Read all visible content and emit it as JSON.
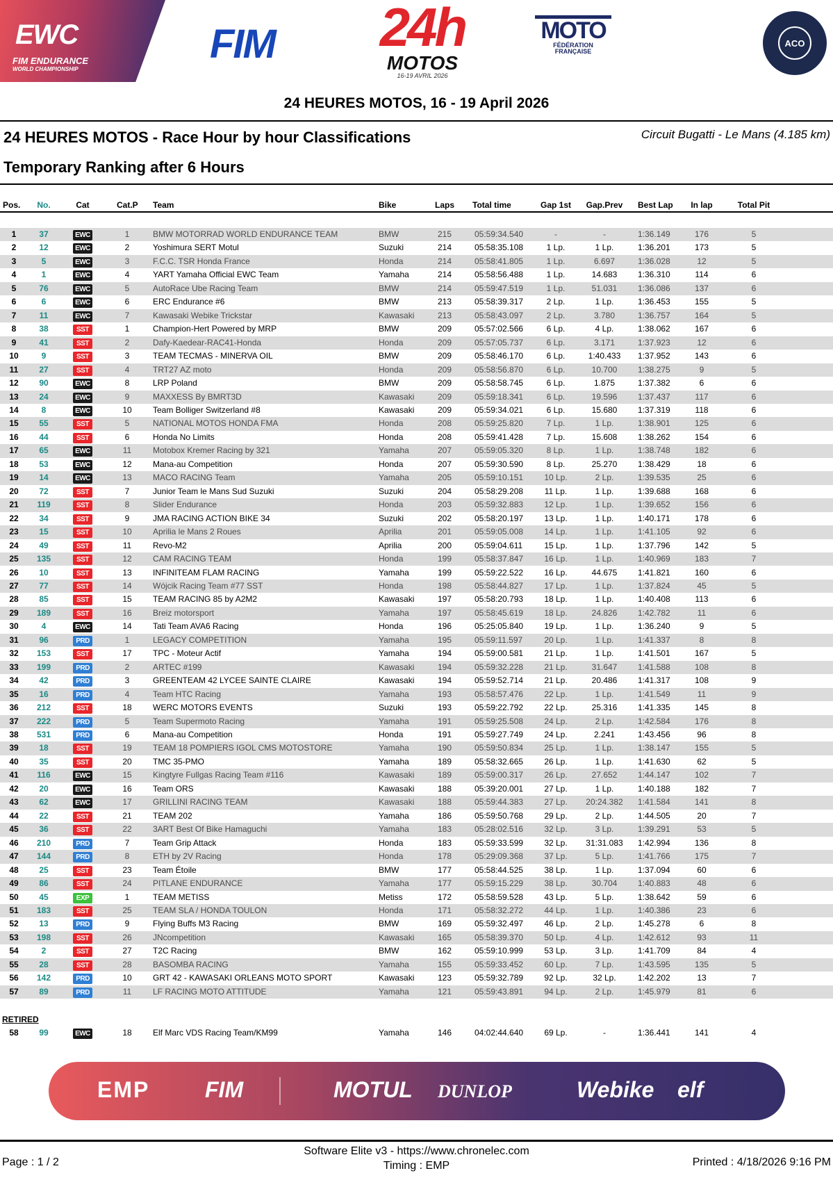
{
  "logos": {
    "ewc": "EWC",
    "ewc_sub1": "FIM ENDURANCE",
    "ewc_sub2": "WORLD CHAMPIONSHIP",
    "fim": "FIM",
    "h24": "24h",
    "h24_motos": "MOTOS",
    "h24_date": "16-19 AVRIL 2026",
    "moto": "MOTO",
    "moto_sub": "FÉDÉRATION FRANÇAISE",
    "aco": "ACO"
  },
  "header": {
    "event": "24 HEURES MOTOS, 16 - 19 April 2026",
    "title": "24 HEURES MOTOS - Race Hour by hour Classifications",
    "circuit": "Circuit Bugatti - Le Mans (4.185 km)",
    "subtitle": "Temporary Ranking after 6 Hours"
  },
  "columns": [
    "Pos.",
    "No.",
    "Cat",
    "Cat.P",
    "Team",
    "Bike",
    "Laps",
    "Total time",
    "Gap 1st",
    "Gap.Prev",
    "Best Lap",
    "In lap",
    "Total Pit"
  ],
  "category_colors": {
    "EWC": "#1a1a1a",
    "SST": "#e8262b",
    "PRD": "#2f7fd4",
    "EXP": "#3cc13c"
  },
  "rows": [
    [
      "1",
      "37",
      "EWC",
      "1",
      "BMW MOTORRAD WORLD ENDURANCE TEAM",
      "BMW",
      "215",
      "05:59:34.540",
      "-",
      "-",
      "1:36.149",
      "176",
      "5"
    ],
    [
      "2",
      "12",
      "EWC",
      "2",
      "Yoshimura SERT Motul",
      "Suzuki",
      "214",
      "05:58:35.108",
      "1 Lp.",
      "1 Lp.",
      "1:36.201",
      "173",
      "5"
    ],
    [
      "3",
      "5",
      "EWC",
      "3",
      "F.C.C. TSR Honda France",
      "Honda",
      "214",
      "05:58:41.805",
      "1 Lp.",
      "6.697",
      "1:36.028",
      "12",
      "5"
    ],
    [
      "4",
      "1",
      "EWC",
      "4",
      "YART Yamaha Official EWC Team",
      "Yamaha",
      "214",
      "05:58:56.488",
      "1 Lp.",
      "14.683",
      "1:36.310",
      "114",
      "6"
    ],
    [
      "5",
      "76",
      "EWC",
      "5",
      "AutoRace Ube Racing Team",
      "BMW",
      "214",
      "05:59:47.519",
      "1 Lp.",
      "51.031",
      "1:36.086",
      "137",
      "6"
    ],
    [
      "6",
      "6",
      "EWC",
      "6",
      "ERC Endurance #6",
      "BMW",
      "213",
      "05:58:39.317",
      "2 Lp.",
      "1 Lp.",
      "1:36.453",
      "155",
      "5"
    ],
    [
      "7",
      "11",
      "EWC",
      "7",
      "Kawasaki Webike Trickstar",
      "Kawasaki",
      "213",
      "05:58:43.097",
      "2 Lp.",
      "3.780",
      "1:36.757",
      "164",
      "5"
    ],
    [
      "8",
      "38",
      "SST",
      "1",
      "Champion-Hert Powered by MRP",
      "BMW",
      "209",
      "05:57:02.566",
      "6 Lp.",
      "4 Lp.",
      "1:38.062",
      "167",
      "6"
    ],
    [
      "9",
      "41",
      "SST",
      "2",
      "Dafy-Kaedear-RAC41-Honda",
      "Honda",
      "209",
      "05:57:05.737",
      "6 Lp.",
      "3.171",
      "1:37.923",
      "12",
      "6"
    ],
    [
      "10",
      "9",
      "SST",
      "3",
      "TEAM TECMAS - MINERVA OIL",
      "BMW",
      "209",
      "05:58:46.170",
      "6 Lp.",
      "1:40.433",
      "1:37.952",
      "143",
      "6"
    ],
    [
      "11",
      "27",
      "SST",
      "4",
      "TRT27  AZ moto",
      "Honda",
      "209",
      "05:58:56.870",
      "6 Lp.",
      "10.700",
      "1:38.275",
      "9",
      "5"
    ],
    [
      "12",
      "90",
      "EWC",
      "8",
      "LRP Poland",
      "BMW",
      "209",
      "05:58:58.745",
      "6 Lp.",
      "1.875",
      "1:37.382",
      "6",
      "6"
    ],
    [
      "13",
      "24",
      "EWC",
      "9",
      "MAXXESS By BMRT3D",
      "Kawasaki",
      "209",
      "05:59:18.341",
      "6 Lp.",
      "19.596",
      "1:37.437",
      "117",
      "6"
    ],
    [
      "14",
      "8",
      "EWC",
      "10",
      "Team Bolliger Switzerland #8",
      "Kawasaki",
      "209",
      "05:59:34.021",
      "6 Lp.",
      "15.680",
      "1:37.319",
      "118",
      "6"
    ],
    [
      "15",
      "55",
      "SST",
      "5",
      "NATIONAL MOTOS HONDA FMA",
      "Honda",
      "208",
      "05:59:25.820",
      "7 Lp.",
      "1 Lp.",
      "1:38.901",
      "125",
      "6"
    ],
    [
      "16",
      "44",
      "SST",
      "6",
      "Honda No Limits",
      "Honda",
      "208",
      "05:59:41.428",
      "7 Lp.",
      "15.608",
      "1:38.262",
      "154",
      "6"
    ],
    [
      "17",
      "65",
      "EWC",
      "11",
      "Motobox Kremer Racing by 321",
      "Yamaha",
      "207",
      "05:59:05.320",
      "8 Lp.",
      "1 Lp.",
      "1:38.748",
      "182",
      "6"
    ],
    [
      "18",
      "53",
      "EWC",
      "12",
      "Mana-au Competition",
      "Honda",
      "207",
      "05:59:30.590",
      "8 Lp.",
      "25.270",
      "1:38.429",
      "18",
      "6"
    ],
    [
      "19",
      "14",
      "EWC",
      "13",
      "MACO RACING Team",
      "Yamaha",
      "205",
      "05:59:10.151",
      "10 Lp.",
      "2 Lp.",
      "1:39.535",
      "25",
      "6"
    ],
    [
      "20",
      "72",
      "SST",
      "7",
      "Junior Team le Mans Sud Suzuki",
      "Suzuki",
      "204",
      "05:58:29.208",
      "11 Lp.",
      "1 Lp.",
      "1:39.688",
      "168",
      "6"
    ],
    [
      "21",
      "119",
      "SST",
      "8",
      "Slider Endurance",
      "Honda",
      "203",
      "05:59:32.883",
      "12 Lp.",
      "1 Lp.",
      "1:39.652",
      "156",
      "6"
    ],
    [
      "22",
      "34",
      "SST",
      "9",
      "JMA RACING ACTION BIKE 34",
      "Suzuki",
      "202",
      "05:58:20.197",
      "13 Lp.",
      "1 Lp.",
      "1:40.171",
      "178",
      "6"
    ],
    [
      "23",
      "15",
      "SST",
      "10",
      "Aprilia le Mans 2 Roues",
      "Aprilia",
      "201",
      "05:59:05.008",
      "14 Lp.",
      "1 Lp.",
      "1:41.105",
      "92",
      "6"
    ],
    [
      "24",
      "49",
      "SST",
      "11",
      "Revo-M2",
      "Aprilia",
      "200",
      "05:59:04.611",
      "15 Lp.",
      "1 Lp.",
      "1:37.796",
      "142",
      "5"
    ],
    [
      "25",
      "135",
      "SST",
      "12",
      "CAM RACING TEAM",
      "Honda",
      "199",
      "05:58:37.847",
      "16 Lp.",
      "1 Lp.",
      "1:40.969",
      "183",
      "7"
    ],
    [
      "26",
      "10",
      "SST",
      "13",
      "INFINITEAM FLAM RACING",
      "Yamaha",
      "199",
      "05:59:22.522",
      "16 Lp.",
      "44.675",
      "1:41.821",
      "160",
      "6"
    ],
    [
      "27",
      "77",
      "SST",
      "14",
      "Wójcik Racing Team #77 SST",
      "Honda",
      "198",
      "05:58:44.827",
      "17 Lp.",
      "1 Lp.",
      "1:37.824",
      "45",
      "5"
    ],
    [
      "28",
      "85",
      "SST",
      "15",
      "TEAM RACING 85 by A2M2",
      "Kawasaki",
      "197",
      "05:58:20.793",
      "18 Lp.",
      "1 Lp.",
      "1:40.408",
      "113",
      "6"
    ],
    [
      "29",
      "189",
      "SST",
      "16",
      "Breiz motorsport",
      "Yamaha",
      "197",
      "05:58:45.619",
      "18 Lp.",
      "24.826",
      "1:42.782",
      "11",
      "6"
    ],
    [
      "30",
      "4",
      "EWC",
      "14",
      "Tati Team AVA6 Racing",
      "Honda",
      "196",
      "05:25:05.840",
      "19 Lp.",
      "1 Lp.",
      "1:36.240",
      "9",
      "5"
    ],
    [
      "31",
      "96",
      "PRD",
      "1",
      "LEGACY COMPETITION",
      "Yamaha",
      "195",
      "05:59:11.597",
      "20 Lp.",
      "1 Lp.",
      "1:41.337",
      "8",
      "8"
    ],
    [
      "32",
      "153",
      "SST",
      "17",
      "TPC - Moteur Actif",
      "Yamaha",
      "194",
      "05:59:00.581",
      "21 Lp.",
      "1 Lp.",
      "1:41.501",
      "167",
      "5"
    ],
    [
      "33",
      "199",
      "PRD",
      "2",
      "ARTEC #199",
      "Kawasaki",
      "194",
      "05:59:32.228",
      "21 Lp.",
      "31.647",
      "1:41.588",
      "108",
      "8"
    ],
    [
      "34",
      "42",
      "PRD",
      "3",
      "GREENTEAM 42 LYCEE SAINTE CLAIRE",
      "Kawasaki",
      "194",
      "05:59:52.714",
      "21 Lp.",
      "20.486",
      "1:41.317",
      "108",
      "9"
    ],
    [
      "35",
      "16",
      "PRD",
      "4",
      "Team HTC Racing",
      "Yamaha",
      "193",
      "05:58:57.476",
      "22 Lp.",
      "1 Lp.",
      "1:41.549",
      "11",
      "9"
    ],
    [
      "36",
      "212",
      "SST",
      "18",
      "WERC MOTORS EVENTS",
      "Suzuki",
      "193",
      "05:59:22.792",
      "22 Lp.",
      "25.316",
      "1:41.335",
      "145",
      "8"
    ],
    [
      "37",
      "222",
      "PRD",
      "5",
      "Team Supermoto Racing",
      "Yamaha",
      "191",
      "05:59:25.508",
      "24 Lp.",
      "2 Lp.",
      "1:42.584",
      "176",
      "8"
    ],
    [
      "38",
      "531",
      "PRD",
      "6",
      "Mana-au Competition",
      "Honda",
      "191",
      "05:59:27.749",
      "24 Lp.",
      "2.241",
      "1:43.456",
      "96",
      "8"
    ],
    [
      "39",
      "18",
      "SST",
      "19",
      "TEAM 18 POMPIERS IGOL CMS MOTOSTORE",
      "Yamaha",
      "190",
      "05:59:50.834",
      "25 Lp.",
      "1 Lp.",
      "1:38.147",
      "155",
      "5"
    ],
    [
      "40",
      "35",
      "SST",
      "20",
      "TMC 35-PMO",
      "Yamaha",
      "189",
      "05:58:32.665",
      "26 Lp.",
      "1 Lp.",
      "1:41.630",
      "62",
      "5"
    ],
    [
      "41",
      "116",
      "EWC",
      "15",
      "Kingtyre Fullgas Racing Team #116",
      "Kawasaki",
      "189",
      "05:59:00.317",
      "26 Lp.",
      "27.652",
      "1:44.147",
      "102",
      "7"
    ],
    [
      "42",
      "20",
      "EWC",
      "16",
      "Team ORS",
      "Kawasaki",
      "188",
      "05:39:20.001",
      "27 Lp.",
      "1 Lp.",
      "1:40.188",
      "182",
      "7"
    ],
    [
      "43",
      "62",
      "EWC",
      "17",
      "GRILLINI RACING TEAM",
      "Kawasaki",
      "188",
      "05:59:44.383",
      "27 Lp.",
      "20:24.382",
      "1:41.584",
      "141",
      "8"
    ],
    [
      "44",
      "22",
      "SST",
      "21",
      "TEAM 202",
      "Yamaha",
      "186",
      "05:59:50.768",
      "29 Lp.",
      "2 Lp.",
      "1:44.505",
      "20",
      "7"
    ],
    [
      "45",
      "36",
      "SST",
      "22",
      "3ART Best Of Bike Hamaguchi",
      "Yamaha",
      "183",
      "05:28:02.516",
      "32 Lp.",
      "3 Lp.",
      "1:39.291",
      "53",
      "5"
    ],
    [
      "46",
      "210",
      "PRD",
      "7",
      "Team Grip Attack",
      "Honda",
      "183",
      "05:59:33.599",
      "32 Lp.",
      "31:31.083",
      "1:42.994",
      "136",
      "8"
    ],
    [
      "47",
      "144",
      "PRD",
      "8",
      "ETH by 2V Racing",
      "Honda",
      "178",
      "05:29:09.368",
      "37 Lp.",
      "5 Lp.",
      "1:41.766",
      "175",
      "7"
    ],
    [
      "48",
      "25",
      "SST",
      "23",
      "Team Étoile",
      "BMW",
      "177",
      "05:58:44.525",
      "38 Lp.",
      "1 Lp.",
      "1:37.094",
      "60",
      "6"
    ],
    [
      "49",
      "86",
      "SST",
      "24",
      "PITLANE ENDURANCE",
      "Yamaha",
      "177",
      "05:59:15.229",
      "38 Lp.",
      "30.704",
      "1:40.883",
      "48",
      "6"
    ],
    [
      "50",
      "45",
      "EXP",
      "1",
      "TEAM METISS",
      "Metiss",
      "172",
      "05:58:59.528",
      "43 Lp.",
      "5 Lp.",
      "1:38.642",
      "59",
      "6"
    ],
    [
      "51",
      "183",
      "SST",
      "25",
      "TEAM SLA / HONDA TOULON",
      "Honda",
      "171",
      "05:58:32.272",
      "44 Lp.",
      "1 Lp.",
      "1:40.386",
      "23",
      "6"
    ],
    [
      "52",
      "13",
      "PRD",
      "9",
      "Flying Buffs M3 Racing",
      "BMW",
      "169",
      "05:59:32.497",
      "46 Lp.",
      "2 Lp.",
      "1:45.278",
      "6",
      "8"
    ],
    [
      "53",
      "198",
      "SST",
      "26",
      "JNcompetition",
      "Kawasaki",
      "165",
      "05:58:39.370",
      "50 Lp.",
      "4 Lp.",
      "1:42.612",
      "93",
      "11"
    ],
    [
      "54",
      "2",
      "SST",
      "27",
      "T2C Racing",
      "BMW",
      "162",
      "05:59:10.999",
      "53 Lp.",
      "3 Lp.",
      "1:41.709",
      "84",
      "4"
    ],
    [
      "55",
      "28",
      "SST",
      "28",
      "BASOMBA RACING",
      "Yamaha",
      "155",
      "05:59:33.452",
      "60 Lp.",
      "7 Lp.",
      "1:43.595",
      "135",
      "5"
    ],
    [
      "56",
      "142",
      "PRD",
      "10",
      "GRT 42 - KAWASAKI ORLEANS MOTO SPORT",
      "Kawasaki",
      "123",
      "05:59:32.789",
      "92 Lp.",
      "32 Lp.",
      "1:42.202",
      "13",
      "7"
    ],
    [
      "57",
      "89",
      "PRD",
      "11",
      "LF RACING MOTO ATTITUDE",
      "Yamaha",
      "121",
      "05:59:43.891",
      "94 Lp.",
      "2 Lp.",
      "1:45.979",
      "81",
      "6"
    ]
  ],
  "retired": {
    "label": "RETIRED",
    "rows": [
      [
        "58",
        "99",
        "EWC",
        "18",
        "Elf Marc VDS Racing Team/KM99",
        "Yamaha",
        "146",
        "04:02:44.640",
        "69 Lp.",
        "-",
        "1:36.441",
        "141",
        "4"
      ]
    ]
  },
  "sponsors": [
    "EMP",
    "FIM",
    "MOTUL",
    "DUNLOP",
    "Webike",
    "elf"
  ],
  "footer": {
    "page": "Page : 1 / 2",
    "software": "Software Elite v3 - https://www.chronelec.com",
    "timing": "Timing : EMP",
    "printed": "Printed : 4/18/2026 9:16 PM"
  }
}
